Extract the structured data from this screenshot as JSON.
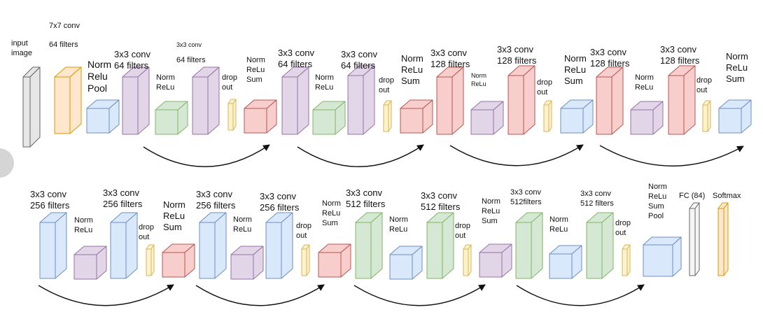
{
  "colors": {
    "input": "#e6e6e6",
    "orange": "#ffe6cc",
    "blue": "#dae8fc",
    "purple": "#e1d5e7",
    "green": "#d5e8d4",
    "red": "#f8cecc",
    "yellow": "#fff2cc",
    "white": "#f5f5f5"
  },
  "labels": [
    "input\nimage",
    "7x7 conv",
    "64 filters",
    "Norm\nRelu\nPool",
    "3x3 conv\n64 filters",
    "3x3 conv",
    "64 filters",
    "Norm\nReLu",
    "drop\nout",
    "Norm\nReLu\nSum",
    "3x3 conv\n64 filters",
    "Norm\nReLu",
    "3x3 conv\n64 filters",
    "drop\nout",
    "Norm\nReLu\nSum",
    "3x3 conv\n128 filters",
    "Norm\nReLu",
    "3x3 conv\n128 filters",
    "drop\nout",
    "Norm\nReLu\nSum",
    "3x3 conv\n128 filters",
    "Norm\nReLu",
    "3x3 conv\n128 filters",
    "drop\nout",
    "Norm\nReLu\nSum",
    "3x3 conv\n256 filters",
    "Norm\nReLu",
    "3x3 conv\n256 filters",
    "drop\nout",
    "Norm\nReLu\nSum",
    "3x3 conv\n256 filters",
    "Norm\nReLu",
    "3x3 conv\n256 filters",
    "drop\nout",
    "Norm\nReLu\nSum",
    "3x3 conv\n512 filters",
    "Norm\nReLu",
    "3x3 conv\n512 filters",
    "drop\nout",
    "Norm\nReLu\nSum",
    "3x3 conv\n512filters",
    "Norm\nReLu",
    "3x3 conv\n512 filters",
    "drop\nout",
    "Norm\nReLu\nSum\nPool",
    "FC (84)",
    "Softmax"
  ],
  "blocks": [
    {
      "row": 1,
      "kind": "input",
      "color": "input"
    },
    {
      "row": 1,
      "kind": "tall",
      "color": "orange"
    },
    {
      "row": 1,
      "kind": "cube",
      "color": "blue"
    },
    {
      "row": 1,
      "kind": "tall",
      "color": "purple"
    },
    {
      "row": 1,
      "kind": "cube",
      "color": "green"
    },
    {
      "row": 1,
      "kind": "tall",
      "color": "purple"
    },
    {
      "row": 1,
      "kind": "drop",
      "color": "yellow"
    },
    {
      "row": 1,
      "kind": "cube",
      "color": "red"
    },
    {
      "row": 1,
      "kind": "tall",
      "color": "purple"
    },
    {
      "row": 1,
      "kind": "cube",
      "color": "green"
    },
    {
      "row": 1,
      "kind": "tall",
      "color": "purple"
    },
    {
      "row": 1,
      "kind": "drop",
      "color": "yellow"
    },
    {
      "row": 1,
      "kind": "cube",
      "color": "red"
    },
    {
      "row": 1,
      "kind": "tall",
      "color": "red"
    },
    {
      "row": 1,
      "kind": "cube",
      "color": "purple"
    },
    {
      "row": 1,
      "kind": "tall",
      "color": "red"
    },
    {
      "row": 1,
      "kind": "drop",
      "color": "yellow"
    },
    {
      "row": 1,
      "kind": "cube",
      "color": "blue"
    },
    {
      "row": 1,
      "kind": "tall",
      "color": "red"
    },
    {
      "row": 1,
      "kind": "cube",
      "color": "purple"
    },
    {
      "row": 1,
      "kind": "tall",
      "color": "red"
    },
    {
      "row": 1,
      "kind": "drop",
      "color": "yellow"
    },
    {
      "row": 1,
      "kind": "cube",
      "color": "blue"
    },
    {
      "row": 2,
      "kind": "tall",
      "color": "blue"
    },
    {
      "row": 2,
      "kind": "cube",
      "color": "purple"
    },
    {
      "row": 2,
      "kind": "tall",
      "color": "blue"
    },
    {
      "row": 2,
      "kind": "drop",
      "color": "yellow"
    },
    {
      "row": 2,
      "kind": "cube",
      "color": "red"
    },
    {
      "row": 2,
      "kind": "tall",
      "color": "blue"
    },
    {
      "row": 2,
      "kind": "cube",
      "color": "purple"
    },
    {
      "row": 2,
      "kind": "tall",
      "color": "blue"
    },
    {
      "row": 2,
      "kind": "drop",
      "color": "yellow"
    },
    {
      "row": 2,
      "kind": "cube",
      "color": "red"
    },
    {
      "row": 2,
      "kind": "tall",
      "color": "green"
    },
    {
      "row": 2,
      "kind": "cube",
      "color": "blue"
    },
    {
      "row": 2,
      "kind": "tall",
      "color": "green"
    },
    {
      "row": 2,
      "kind": "drop",
      "color": "yellow"
    },
    {
      "row": 2,
      "kind": "cube",
      "color": "purple"
    },
    {
      "row": 2,
      "kind": "tall",
      "color": "green"
    },
    {
      "row": 2,
      "kind": "cube",
      "color": "blue"
    },
    {
      "row": 2,
      "kind": "tall",
      "color": "green"
    },
    {
      "row": 2,
      "kind": "drop",
      "color": "yellow"
    },
    {
      "row": 2,
      "kind": "cube",
      "color": "blue"
    },
    {
      "row": 2,
      "kind": "fc",
      "color": "white"
    },
    {
      "row": 2,
      "kind": "fc",
      "color": "orange"
    }
  ]
}
